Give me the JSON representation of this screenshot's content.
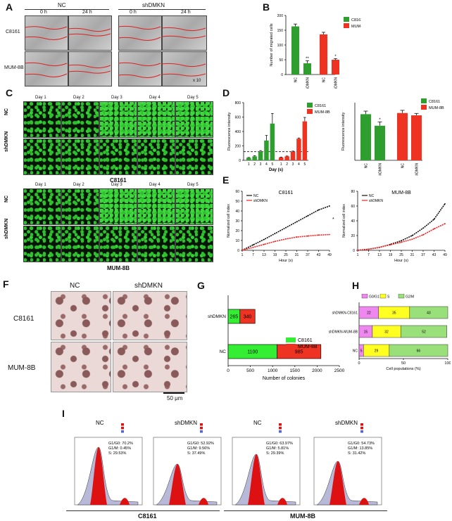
{
  "figure": {
    "panel_letters": [
      "A",
      "B",
      "C",
      "D",
      "E",
      "F",
      "G",
      "H",
      "I"
    ],
    "A": {
      "group_labels": [
        "NC",
        "shDMKN"
      ],
      "time_labels": [
        "0 h",
        "24 h",
        "0 h",
        "24 h"
      ],
      "row_labels": [
        "C8161",
        "MUM-8B"
      ],
      "magnification": "x 10"
    },
    "C": {
      "day_labels": [
        "Day 1",
        "Day 2",
        "Day 3",
        "Day 4",
        "Day 5"
      ],
      "row_labels": [
        "NC",
        "shDMKN"
      ],
      "block_titles": [
        "C8161",
        "MUM-8B"
      ]
    },
    "F": {
      "column_labels": [
        "NC",
        "shDMKN"
      ],
      "row_labels": [
        "C8161",
        "MUM-8B"
      ],
      "scale_bar": "50 μm"
    },
    "I": {
      "titles": [
        "NC",
        "shDMKN",
        "NC",
        "shDMKN"
      ],
      "stats": [
        [
          "G1/G0: 70.2%",
          "G1/M: 0.45%",
          "S: 29.53%"
        ],
        [
          "G1/G0: 52.92%",
          "G1/M: 9.56%",
          "S: 37.49%"
        ],
        [
          "G1/G0: 63.97%",
          "G1/M: 5.81%",
          "S: 29.39%"
        ],
        [
          "G1/G0: 54.73%",
          "G1/M: 13.85%",
          "S: 31.42%"
        ]
      ],
      "bottom_labels": [
        "C8161",
        "MUM-8B"
      ],
      "colors": {
        "g1": "#dd1111",
        "s": "#b8b8d8",
        "outline": "#333333"
      }
    }
  },
  "chart_data": [
    {
      "panel": "B",
      "type": "bar",
      "categories": [
        "NC",
        "shDMKN",
        "NC",
        "shDMKN"
      ],
      "series": [
        {
          "name": "C8161",
          "color": "#2e9e2e",
          "values": [
            163,
            38,
            null,
            null
          ],
          "errors": [
            8,
            9,
            null,
            null
          ]
        },
        {
          "name": "MUM-8B",
          "color": "#ee3322",
          "values": [
            null,
            null,
            136,
            50
          ],
          "errors": [
            null,
            null,
            7,
            4
          ]
        }
      ],
      "annotations": [
        "",
        "**",
        "",
        "*"
      ],
      "ylabel": "Number of migrated cells",
      "ylim": [
        0,
        200
      ],
      "yticks": [
        0,
        50,
        100,
        150,
        200
      ],
      "legend": "top-right"
    },
    {
      "panel": "D-left",
      "type": "bar",
      "categories": [
        "1",
        "2",
        "3",
        "4",
        "5",
        "1",
        "2",
        "3",
        "4",
        "5"
      ],
      "series": [
        {
          "name": "C8161",
          "color": "#2e9e2e",
          "values": [
            35,
            55,
            120,
            275,
            510,
            null,
            null,
            null,
            null,
            null
          ],
          "errors": [
            5,
            8,
            15,
            70,
            140,
            null,
            null,
            null,
            null,
            null
          ]
        },
        {
          "name": "MUM-8B",
          "color": "#ee3322",
          "values": [
            null,
            null,
            null,
            null,
            null,
            40,
            55,
            120,
            300,
            540
          ],
          "errors": [
            null,
            null,
            null,
            null,
            null,
            5,
            5,
            8,
            10,
            55
          ]
        }
      ],
      "xlabel": "Day (s)",
      "ylabel": "Fluorescence intensity",
      "ylim": [
        0,
        800
      ],
      "yticks": [
        0,
        200,
        400,
        600,
        800
      ],
      "reference_line": 120,
      "legend": "top-right"
    },
    {
      "panel": "D-right",
      "type": "bar",
      "categories": [
        "NC",
        "shDMKN",
        "NC",
        "shDMKN"
      ],
      "series": [
        {
          "name": "C8161",
          "color": "#2e9e2e",
          "values": [
            120,
            90,
            null,
            null
          ],
          "errors": [
            8,
            10,
            null,
            null
          ]
        },
        {
          "name": "MUM-8B",
          "color": "#ee3322",
          "values": [
            null,
            null,
            123,
            117
          ],
          "errors": [
            null,
            null,
            7,
            5
          ]
        }
      ],
      "annotations": [
        "",
        "*",
        "",
        ""
      ],
      "ylabel": "Fluorescence intensity",
      "ylim": [
        0,
        150
      ],
      "legend": "top-right"
    },
    {
      "panel": "E-left",
      "type": "line",
      "title": "C8161",
      "x": [
        1,
        7,
        13,
        19,
        25,
        31,
        37,
        43,
        49
      ],
      "series": [
        {
          "name": "NC",
          "color": "#111111",
          "values": [
            0,
            5.5,
            11,
            17,
            23,
            29,
            35,
            41,
            45
          ]
        },
        {
          "name": "shDMKN",
          "color": "#ee2222",
          "values": [
            0,
            3,
            6,
            9,
            11.5,
            13.5,
            14.5,
            15.5,
            16
          ]
        }
      ],
      "xlabel": "Hour (s)",
      "ylabel": "Normalized cell index",
      "ylim": [
        0,
        60
      ],
      "yticks": [
        0,
        10,
        20,
        30,
        40,
        50,
        60
      ],
      "annotations": [
        "*"
      ],
      "legend": "top-left"
    },
    {
      "panel": "E-right",
      "type": "line",
      "title": "MUM-8B",
      "x": [
        1,
        7,
        13,
        19,
        25,
        31,
        37,
        43,
        49
      ],
      "series": [
        {
          "name": "NC",
          "color": "#111111",
          "values": [
            0,
            1.5,
            4,
            8,
            13,
            20,
            30,
            42,
            63
          ]
        },
        {
          "name": "shDMKN",
          "color": "#ee2222",
          "values": [
            0,
            1.5,
            4,
            7.5,
            11,
            15,
            21,
            29,
            36
          ]
        }
      ],
      "xlabel": "Hour (s)",
      "ylabel": "Normalized cell index",
      "ylim": [
        0,
        80
      ],
      "yticks": [
        0,
        20,
        40,
        60,
        80
      ],
      "legend": "top-left"
    },
    {
      "panel": "G",
      "type": "bar",
      "orientation": "horizontal",
      "stacked": true,
      "categories": [
        "NC",
        "shDMKN"
      ],
      "series": [
        {
          "name": "C8161",
          "color": "#33ee33",
          "values": [
            1100,
            265
          ]
        },
        {
          "name": "MUM-8B",
          "color": "#ee3322",
          "values": [
            985,
            340
          ]
        }
      ],
      "xlabel": "Number of colonies",
      "xlim": [
        0,
        2500
      ],
      "xticks": [
        0,
        500,
        1000,
        1500,
        2000,
        2500
      ],
      "legend": "top-right"
    },
    {
      "panel": "H",
      "type": "bar",
      "orientation": "horizontal",
      "stacked": true,
      "categories": [
        "NC",
        "shDMKN-MUM-8B",
        "shDMKN-C8161"
      ],
      "series": [
        {
          "name": "G0/G1",
          "color": "#ee88ee",
          "values": [
            5,
            15,
            22
          ]
        },
        {
          "name": "S",
          "color": "#ffff22",
          "values": [
            29,
            32,
            35
          ]
        },
        {
          "name": "G2/M",
          "color": "#99e07a",
          "values": [
            66,
            52,
            43
          ]
        }
      ],
      "xlabel": "Cell populations (%)",
      "xlim": [
        0,
        100
      ],
      "xticks": [
        0,
        50,
        100
      ],
      "legend": "top"
    }
  ]
}
